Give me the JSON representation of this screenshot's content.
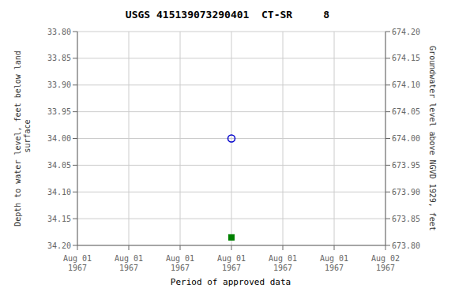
{
  "chart_data": {
    "type": "scatter",
    "title": "USGS 415139073290401  CT-SR     8",
    "ylabel": "Depth to water level, feet below land\n surface",
    "y2label": "Groundwater level above NGVD 1929, feet",
    "categories": [
      "Aug 01\n1967",
      "Aug 01\n1967",
      "Aug 01\n1967",
      "Aug 01\n1967",
      "Aug 01\n1967",
      "Aug 01\n1967",
      "Aug 02\n1967"
    ],
    "series": [
      {
        "color": "#0000cc",
        "marker": "circle",
        "values": [
          null,
          null,
          null,
          34.0,
          null,
          null,
          null
        ]
      },
      {
        "name": "Period of approved data",
        "color": "#008000",
        "marker": "square",
        "values": [
          null,
          null,
          null,
          34.185,
          null,
          null,
          null
        ]
      }
    ],
    "ylim": [
      34.2,
      33.8
    ],
    "yticks": [
      {
        "value": 33.8,
        "label": "33.80"
      },
      33.85,
      {
        "value": 33.9,
        "label": "33.90"
      },
      33.95,
      {
        "value": 34.0,
        "label": "34.00"
      },
      34.05,
      {
        "value": 34.1,
        "label": "34.10"
      },
      34.15,
      {
        "value": 34.2,
        "label": "34.20"
      }
    ],
    "y2lim": [
      673.8,
      674.2
    ],
    "y2ticks": [
      {
        "value": 674.2,
        "label": "674.20"
      },
      674.15,
      {
        "value": 674.1,
        "label": "674.10"
      },
      674.05,
      {
        "value": 674.0,
        "label": "674.00"
      },
      673.95,
      {
        "value": 673.9,
        "label": "673.90"
      },
      673.85,
      {
        "value": 673.8,
        "label": "673.80"
      }
    ],
    "grid": true,
    "legend": "bottom"
  }
}
